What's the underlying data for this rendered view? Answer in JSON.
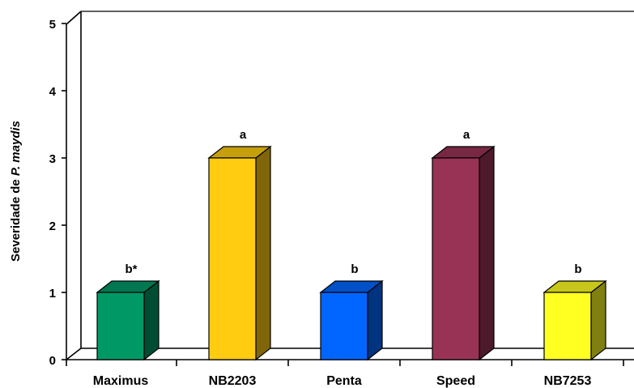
{
  "chart_data": {
    "type": "bar",
    "style": "3d",
    "categories": [
      "Maximus",
      "NB2203",
      "Penta",
      "Speed",
      "NB7253"
    ],
    "values": [
      1,
      3,
      1,
      3,
      1
    ],
    "data_labels": [
      "b*",
      "a",
      "b",
      "a",
      "b"
    ],
    "colors": [
      "#009966",
      "#ffcc11",
      "#0066ff",
      "#993355",
      "#ffff22"
    ],
    "ylabel": {
      "prefix": "Severidade de ",
      "italic": "P. maydis"
    },
    "xlabel": "",
    "title": "",
    "ylim": [
      0,
      5
    ],
    "yticks": [
      "0",
      "1",
      "2",
      "3",
      "4",
      "5"
    ],
    "grid": false,
    "legend": "none"
  }
}
